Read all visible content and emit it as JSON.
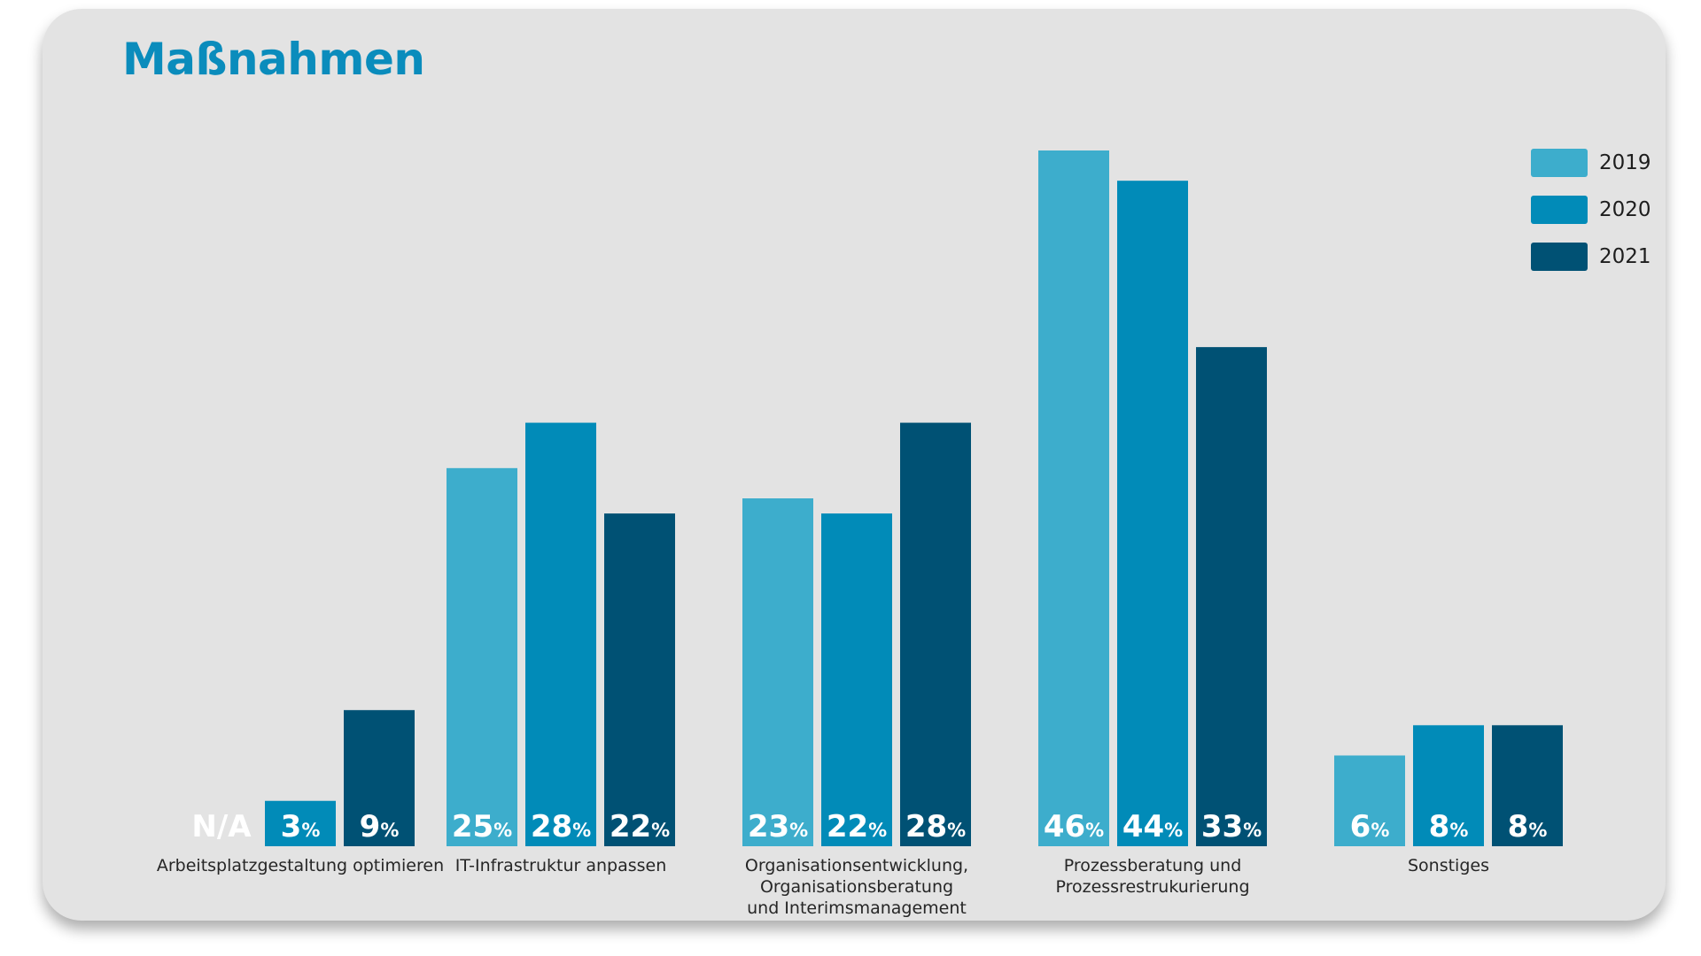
{
  "title": "Maßnahmen",
  "chart_data": {
    "type": "bar",
    "title": "Maßnahmen",
    "categories": [
      [
        "Arbeitsplatzgestaltung optimieren"
      ],
      [
        "IT-Infrastruktur anpassen"
      ],
      [
        "Organisationsentwicklung,",
        "Organisationsberatung",
        "und Interimsmanagement"
      ],
      [
        "Prozessberatung und",
        "Prozessrestrukurierung"
      ],
      [
        "Sonstiges"
      ]
    ],
    "series": [
      {
        "name": "2019",
        "color": "#3dadcc",
        "values": [
          null,
          25,
          23,
          46,
          6
        ],
        "labels": [
          "N/A",
          "25",
          "23",
          "46",
          "6"
        ]
      },
      {
        "name": "2020",
        "color": "#018bb8",
        "values": [
          3,
          28,
          22,
          44,
          8
        ],
        "labels": [
          "3",
          "28",
          "22",
          "44",
          "8"
        ]
      },
      {
        "name": "2021",
        "color": "#005174",
        "values": [
          9,
          22,
          28,
          33,
          8
        ],
        "labels": [
          "9",
          "22",
          "28",
          "33",
          "8"
        ]
      }
    ],
    "unit": "%",
    "na_label": "N/A",
    "ylim": [
      0,
      46
    ],
    "grid": false,
    "legend_position": "top-right"
  }
}
